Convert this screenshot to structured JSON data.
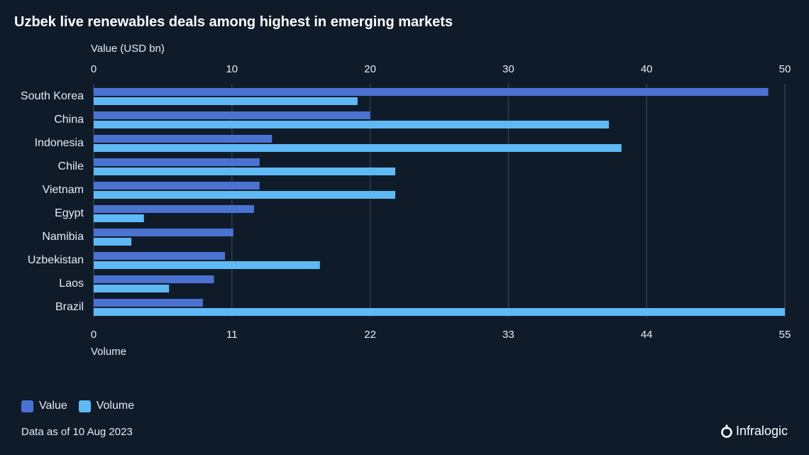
{
  "chart_data": {
    "type": "bar",
    "orientation": "horizontal",
    "title": "Uzbek live renewables deals among highest in emerging markets",
    "categories": [
      "South Korea",
      "China",
      "Indonesia",
      "Chile",
      "Vietnam",
      "Egypt",
      "Namibia",
      "Uzbekistan",
      "Laos",
      "Brazil"
    ],
    "series": [
      {
        "name": "Value",
        "axis": "top",
        "color": "#4a72d1",
        "values": [
          48.8,
          20.0,
          12.9,
          12.0,
          12.0,
          11.6,
          10.1,
          9.5,
          8.7,
          7.9
        ]
      },
      {
        "name": "Volume",
        "axis": "bottom",
        "color": "#5fb9f5",
        "values": [
          21,
          41,
          42,
          24,
          24,
          4,
          3,
          18,
          6,
          55
        ]
      }
    ],
    "top_axis": {
      "label": "Value (USD bn)",
      "range": [
        0,
        50
      ],
      "ticks": [
        "0",
        "10",
        "20",
        "30",
        "40",
        "50"
      ]
    },
    "bottom_axis": {
      "label": "Volume",
      "range": [
        0,
        55
      ],
      "ticks": [
        "0",
        "11",
        "22",
        "33",
        "44",
        "55"
      ]
    },
    "grid": true,
    "legend_position": "bottom-left"
  },
  "footnote": "Data as of 10 Aug 2023",
  "brand": "Infralogic",
  "colors": {
    "background": "#101b2a",
    "grid": "#2d3a4b",
    "text": "#e6ebf2"
  }
}
